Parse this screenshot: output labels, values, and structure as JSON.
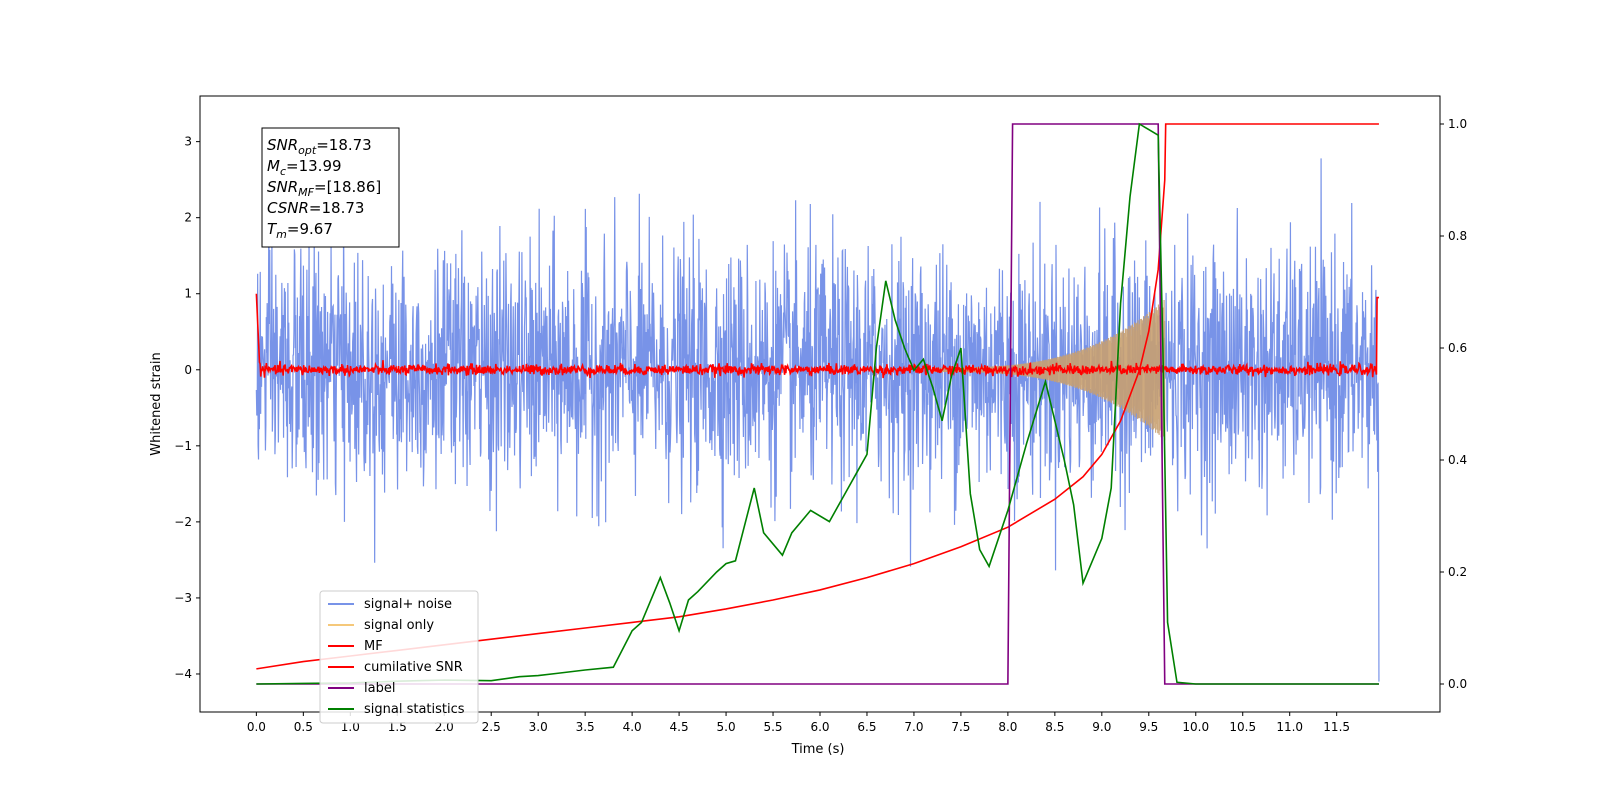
{
  "chart_data": {
    "type": "line",
    "xlabel": "Time (s)",
    "ylabel": "Whitened strain",
    "xlim": [
      -0.6,
      12.6
    ],
    "ylim": [
      -4.5,
      3.6
    ],
    "y2lim": [
      -0.05,
      1.05
    ],
    "x_ticks": [
      0.0,
      0.5,
      1.0,
      1.5,
      2.0,
      2.5,
      3.0,
      3.5,
      4.0,
      4.5,
      5.0,
      5.5,
      6.0,
      6.5,
      7.0,
      7.5,
      8.0,
      8.5,
      9.0,
      9.5,
      10.0,
      10.5,
      11.0,
      11.5
    ],
    "x_tick_labels": [
      "0.0",
      "0.5",
      "1.0",
      "1.5",
      "2.0",
      "2.5",
      "3.0",
      "3.5",
      "4.0",
      "4.5",
      "5.0",
      "5.5",
      "6.0",
      "6.5",
      "7.0",
      "7.5",
      "8.0",
      "8.5",
      "9.0",
      "9.5",
      "10.0",
      "10.5",
      "11.0",
      "11.5"
    ],
    "y_ticks": [
      3,
      2,
      1,
      0,
      -1,
      -2,
      -3,
      -4
    ],
    "y_tick_labels": [
      "3",
      "2",
      "1",
      "0",
      "−1",
      "−2",
      "−3",
      "−4"
    ],
    "y2_ticks": [
      1.0,
      0.8,
      0.6,
      0.4,
      0.2,
      0.0
    ],
    "y2_tick_labels": [
      "1.0",
      "0.8",
      "0.6",
      "0.4",
      "0.2",
      "0.0"
    ],
    "grid": false,
    "legend_position": "lower-left",
    "annotation": {
      "lines": [
        {
          "base": "SNR",
          "sub": "opt",
          "value": "=18.73"
        },
        {
          "base": "M",
          "sub": "c",
          "value": "=13.99"
        },
        {
          "base": "SNR",
          "sub": "MF",
          "value": "=[18.86]"
        },
        {
          "base": "CSNR",
          "sub": "",
          "value": "=18.73"
        },
        {
          "base": "T",
          "sub": "m",
          "value": "=9.67"
        }
      ]
    },
    "legend": [
      {
        "name": "signal+ noise",
        "color": "#7893e8"
      },
      {
        "name": "signal only",
        "color": "#f5c87a"
      },
      {
        "name": "MF",
        "color": "#ff0000"
      },
      {
        "name": "cumilative SNR",
        "color": "#ff0000"
      },
      {
        "name": "label",
        "color": "#800080"
      },
      {
        "name": "signal statistics",
        "color": "#008000"
      }
    ],
    "series": [
      {
        "name": "cumilative SNR",
        "axis": "right",
        "color": "#ff0000",
        "x": [
          0.0,
          0.5,
          1.0,
          1.5,
          2.0,
          2.5,
          3.0,
          3.5,
          4.0,
          4.5,
          5.0,
          5.5,
          6.0,
          6.5,
          7.0,
          7.5,
          8.0,
          8.5,
          8.8,
          9.0,
          9.2,
          9.4,
          9.5,
          9.6,
          9.67,
          9.68,
          11.95
        ],
        "y": [
          0.027,
          0.04,
          0.05,
          0.06,
          0.07,
          0.08,
          0.09,
          0.1,
          0.11,
          0.12,
          0.134,
          0.15,
          0.168,
          0.19,
          0.215,
          0.245,
          0.28,
          0.33,
          0.37,
          0.41,
          0.47,
          0.56,
          0.63,
          0.74,
          0.9,
          1.0,
          1.0
        ]
      },
      {
        "name": "label",
        "axis": "right",
        "color": "#800080",
        "x": [
          0.0,
          8.0,
          8.05,
          9.6,
          9.67,
          11.95
        ],
        "y": [
          0.0,
          0.0,
          1.0,
          1.0,
          0.0,
          0.0
        ]
      },
      {
        "name": "signal statistics",
        "axis": "right",
        "color": "#008000",
        "x": [
          0.0,
          0.5,
          1.0,
          1.5,
          2.0,
          2.5,
          2.8,
          3.0,
          3.2,
          3.5,
          3.8,
          4.0,
          4.1,
          4.3,
          4.4,
          4.5,
          4.6,
          4.7,
          4.9,
          5.0,
          5.1,
          5.3,
          5.4,
          5.6,
          5.7,
          5.9,
          6.1,
          6.3,
          6.4,
          6.5,
          6.6,
          6.7,
          6.8,
          6.9,
          7.0,
          7.1,
          7.2,
          7.3,
          7.4,
          7.5,
          7.6,
          7.7,
          7.8,
          8.0,
          8.2,
          8.4,
          8.6,
          8.7,
          8.8,
          9.0,
          9.1,
          9.2,
          9.3,
          9.4,
          9.5,
          9.6,
          9.65,
          9.7,
          9.8,
          10.0,
          11.95
        ],
        "y": [
          0.0,
          0.001,
          0.002,
          0.005,
          0.007,
          0.006,
          0.013,
          0.015,
          0.019,
          0.025,
          0.03,
          0.095,
          0.11,
          0.19,
          0.145,
          0.095,
          0.15,
          0.165,
          0.2,
          0.215,
          0.22,
          0.35,
          0.27,
          0.23,
          0.27,
          0.31,
          0.29,
          0.35,
          0.38,
          0.41,
          0.6,
          0.72,
          0.65,
          0.6,
          0.56,
          0.58,
          0.53,
          0.47,
          0.55,
          0.6,
          0.34,
          0.24,
          0.21,
          0.31,
          0.43,
          0.54,
          0.4,
          0.32,
          0.18,
          0.26,
          0.35,
          0.68,
          0.87,
          1.0,
          0.99,
          0.98,
          0.6,
          0.11,
          0.003,
          0.0,
          0.0
        ]
      }
    ]
  }
}
